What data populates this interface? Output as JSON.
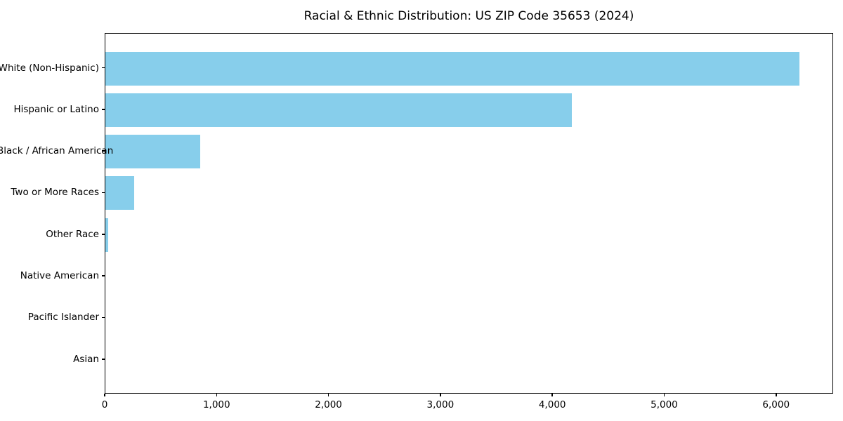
{
  "title": "Racial & Ethnic Distribution: US ZIP Code 35653 (2024)",
  "colors": {
    "bar": "#87CEEB",
    "axis": "#000000",
    "text": "#000000",
    "background": "#ffffff"
  },
  "chart_data": {
    "type": "bar",
    "orientation": "horizontal",
    "title": "Racial & Ethnic Distribution: US ZIP Code 35653 (2024)",
    "categories": [
      "White (Non-Hispanic)",
      "Hispanic or Latino",
      "Black / African American",
      "Two or More Races",
      "Other Race",
      "Native American",
      "Pacific Islander",
      "Asian"
    ],
    "values": [
      6200,
      4170,
      850,
      260,
      25,
      0,
      0,
      0
    ],
    "xlabel": "",
    "ylabel": "",
    "x_ticks": [
      0,
      1000,
      2000,
      3000,
      4000,
      5000,
      6000
    ],
    "x_tick_labels": [
      "0",
      "1,000",
      "2,000",
      "3,000",
      "4,000",
      "5,000",
      "6,000"
    ],
    "xlim": [
      0,
      6510
    ],
    "grid": false,
    "legend": null,
    "bar_color": "#87CEEB"
  }
}
